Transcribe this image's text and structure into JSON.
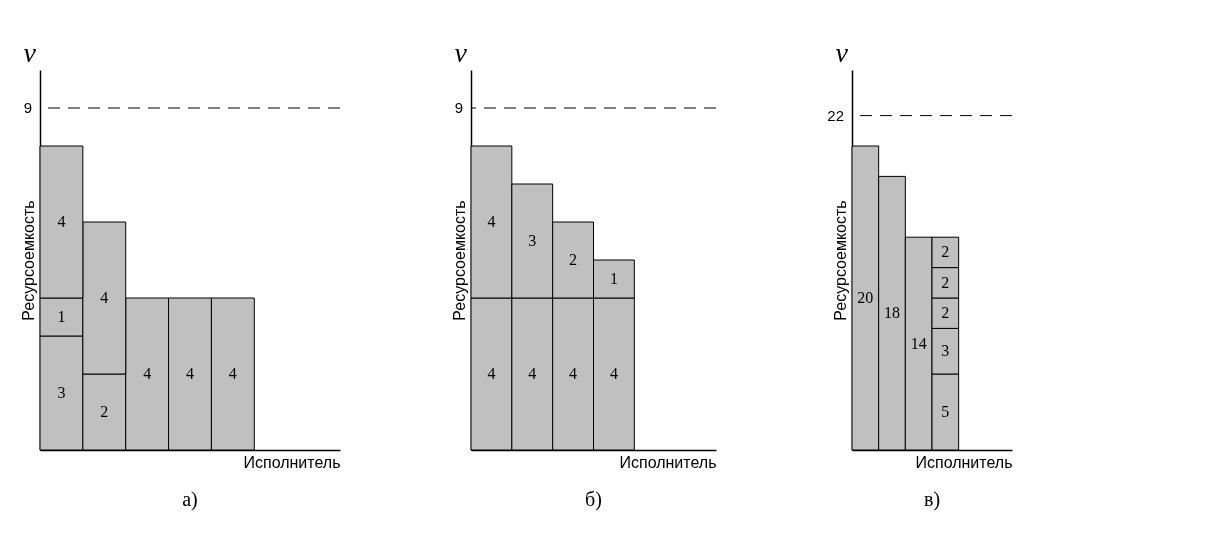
{
  "chart_data": [
    {
      "type": "bar",
      "title": "а)",
      "xlabel": "Исполнитель",
      "ylabel": "Ресурсоемкость",
      "annotations": [
        "v"
      ],
      "categories": [
        null,
        null,
        null,
        null,
        null
      ],
      "stacked": true,
      "data_labels": true,
      "ylim": [
        0,
        10
      ],
      "tick_labels": false,
      "grid": false,
      "series": [
        {
          "color": "#c0c0c0",
          "values": [
            3,
            2,
            4,
            4,
            4
          ]
        },
        {
          "color": "#c0c0c0",
          "values": [
            1,
            4,
            null,
            null,
            null
          ]
        },
        {
          "color": "#c0c0c0",
          "values": [
            4,
            null,
            null,
            null,
            null
          ]
        }
      ],
      "ref_lines": [
        {
          "axis": "y",
          "value": 9,
          "label": "9",
          "line_style": "dashed"
        }
      ]
    },
    {
      "type": "bar",
      "title": "б)",
      "xlabel": "Исполнитель",
      "ylabel": "Ресурсоемкость",
      "annotations": [
        "v"
      ],
      "categories": [
        null,
        null,
        null,
        null
      ],
      "stacked": true,
      "data_labels": true,
      "ylim": [
        0,
        10
      ],
      "tick_labels": false,
      "grid": false,
      "series": [
        {
          "color": "#c0c0c0",
          "values": [
            4,
            4,
            4,
            4
          ]
        },
        {
          "color": "#c0c0c0",
          "values": [
            4,
            3,
            2,
            1
          ]
        }
      ],
      "ref_lines": [
        {
          "axis": "y",
          "value": 9,
          "label": "9",
          "line_style": "dashed"
        }
      ]
    },
    {
      "type": "bar",
      "title": "в)",
      "xlabel": "Исполнитель",
      "ylabel": "Ресурсоемкость",
      "annotations": [
        "v"
      ],
      "categories": [
        null,
        null,
        null,
        null
      ],
      "stacked": true,
      "data_labels": true,
      "ylim": [
        0,
        25
      ],
      "tick_labels": false,
      "grid": false,
      "series": [
        {
          "color": "#c0c0c0",
          "values": [
            20,
            18,
            14,
            5
          ]
        },
        {
          "color": "#c0c0c0",
          "values": [
            null,
            null,
            null,
            3
          ]
        },
        {
          "color": "#c0c0c0",
          "values": [
            null,
            null,
            null,
            2
          ]
        },
        {
          "color": "#c0c0c0",
          "values": [
            null,
            null,
            null,
            2
          ]
        },
        {
          "color": "#c0c0c0",
          "values": [
            null,
            null,
            null,
            2
          ]
        }
      ],
      "ref_lines": [
        {
          "axis": "y",
          "value": 22,
          "label": "22",
          "line_style": "dashed"
        }
      ]
    }
  ]
}
